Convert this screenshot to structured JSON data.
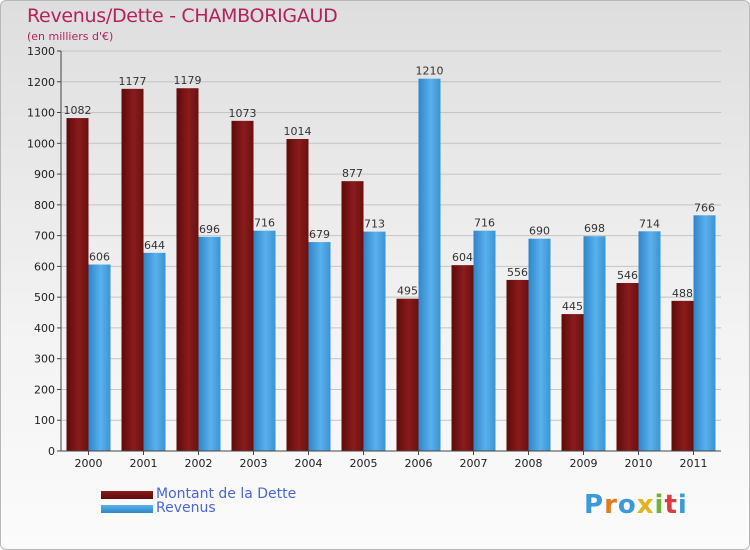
{
  "title": "Revenus/Dette - CHAMBORIGAUD",
  "unit_label": "(en milliers d'€)",
  "colors": {
    "debt": "#7a1414",
    "revenue": "#3d9ad9",
    "title": "#b5215b",
    "legend_text": "#4a66d6"
  },
  "legend": [
    {
      "label": "Montant de la Dette",
      "series": "debt"
    },
    {
      "label": "Revenus",
      "series": "revenue"
    }
  ],
  "logo": {
    "text": "Proxiti"
  },
  "chart_data": {
    "type": "bar",
    "title": "Revenus/Dette - CHAMBORIGAUD",
    "ylabel": "(en milliers d'€)",
    "xlabel": "",
    "ylim": [
      0,
      1300
    ],
    "ytick_step": 100,
    "categories": [
      "2000",
      "2001",
      "2002",
      "2003",
      "2004",
      "2005",
      "2006",
      "2007",
      "2008",
      "2009",
      "2010",
      "2011"
    ],
    "series": [
      {
        "name": "Montant de la Dette",
        "key": "debt",
        "values": [
          1082,
          1177,
          1179,
          1073,
          1014,
          877,
          495,
          604,
          556,
          445,
          546,
          488
        ]
      },
      {
        "name": "Revenus",
        "key": "revenue",
        "values": [
          606,
          644,
          696,
          716,
          679,
          713,
          1210,
          716,
          690,
          698,
          714,
          766
        ]
      }
    ]
  }
}
